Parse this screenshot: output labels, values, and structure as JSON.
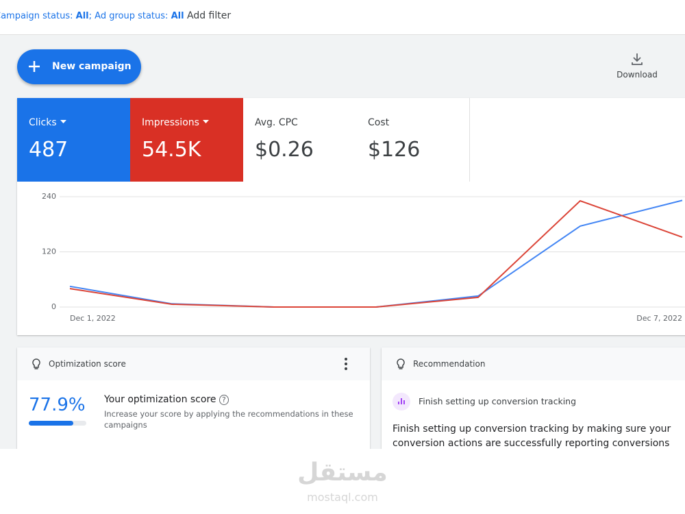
{
  "filter_bar": {
    "filters": [
      {
        "label": "Campaign status:",
        "value": "All"
      },
      {
        "label": "Ad group status:",
        "value": "All"
      }
    ],
    "separator": ";",
    "add_filter": "Add filter"
  },
  "toolbar": {
    "new_campaign": "New campaign",
    "download": "Download"
  },
  "metrics": [
    {
      "label": "Clicks",
      "value": "487",
      "color": "#1a73e8"
    },
    {
      "label": "Impressions",
      "value": "54.5K",
      "color": "#d93025"
    },
    {
      "label": "Avg. CPC",
      "value": "$0.26"
    },
    {
      "label": "Cost",
      "value": "$126"
    }
  ],
  "chart_data": {
    "type": "line",
    "categories": [
      "Dec 1, 2022",
      null,
      null,
      null,
      null,
      null,
      "Dec 7, 2022"
    ],
    "series": [
      {
        "name": "Clicks",
        "color": "#4285f4",
        "values": [
          45,
          7,
          0,
          0,
          24,
          176,
          232
        ]
      },
      {
        "name": "Impressions",
        "color": "#db4437",
        "values": [
          40,
          6,
          0,
          0,
          21,
          231,
          152
        ]
      }
    ],
    "ylim": [
      0,
      240
    ],
    "yticks": [
      0,
      120,
      240
    ],
    "grid": true
  },
  "optimization_card": {
    "header": "Optimization score",
    "score": 77.9,
    "score_label": "77.9%",
    "title": "Your optimization score",
    "description": "Increase your score by applying the recommendations in these campaigns"
  },
  "recommendation_card": {
    "header": "Recommendation",
    "item": "Finish setting up conversion tracking",
    "body": "Finish setting up conversion tracking by making sure your conversion actions are successfully reporting conversions"
  },
  "watermark": {
    "arabic": "مستقل",
    "latin": "mostaql.com"
  }
}
